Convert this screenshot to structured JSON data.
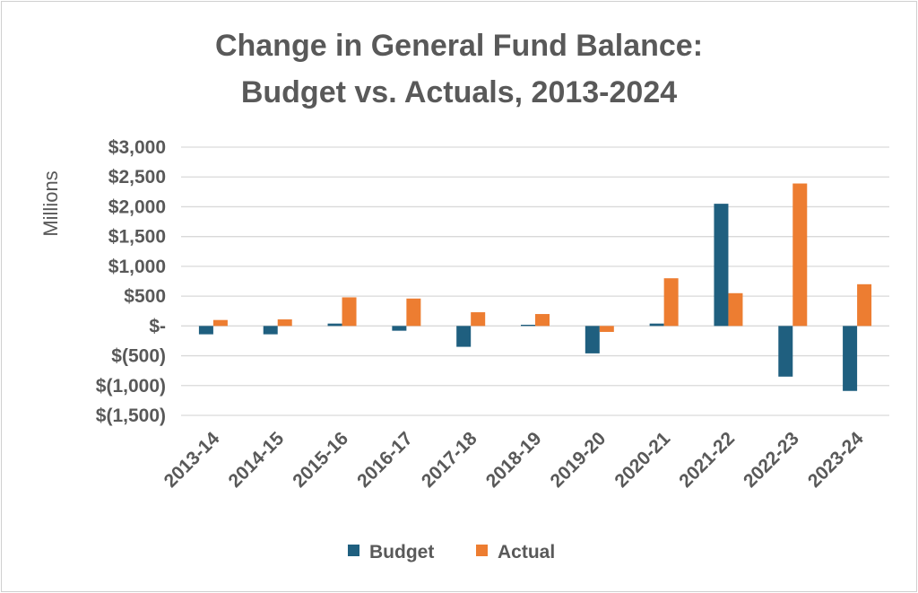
{
  "chart_data": {
    "type": "bar",
    "title": "Change in General Fund Balance:",
    "subtitle": "Budget vs. Actuals, 2013-2024",
    "xlabel": "",
    "ylabel": "Millions",
    "ylim": [
      -1500,
      3000
    ],
    "yticks": [
      3000,
      2500,
      2000,
      1500,
      1000,
      500,
      0,
      -500,
      -1000,
      -1500
    ],
    "ytick_labels": [
      "$3,000",
      "$2,500",
      "$2,000",
      "$1,500",
      "$1,000",
      "$500",
      "$-",
      "$(500)",
      "$(1,000)",
      "$(1,500)"
    ],
    "categories": [
      "2013-14",
      "2014-15",
      "2015-16",
      "2016-17",
      "2017-18",
      "2018-19",
      "2019-20",
      "2020-21",
      "2021-22",
      "2022-23",
      "2023-24"
    ],
    "series": [
      {
        "name": "Budget",
        "color": "#1f5f7f",
        "values": [
          -140,
          -140,
          40,
          -80,
          -350,
          20,
          -460,
          40,
          2050,
          -850,
          -1090
        ]
      },
      {
        "name": "Actual",
        "color": "#ed7d31",
        "values": [
          100,
          110,
          480,
          460,
          230,
          200,
          -100,
          800,
          550,
          2390,
          700
        ]
      }
    ],
    "grid": true,
    "legend": "bottom"
  }
}
